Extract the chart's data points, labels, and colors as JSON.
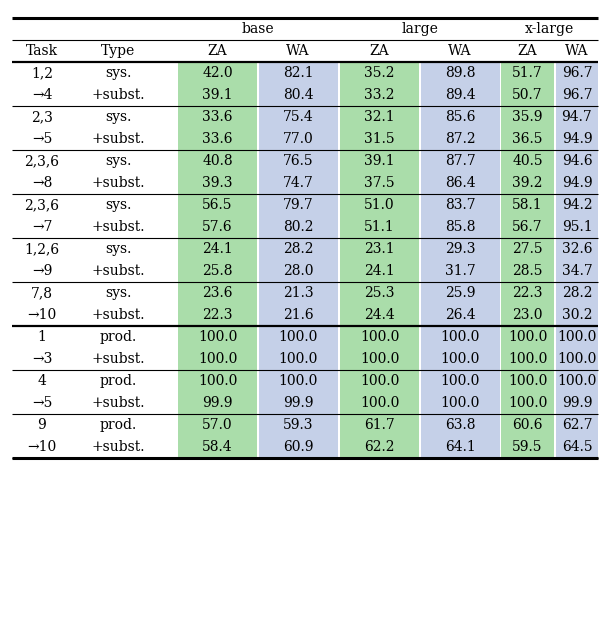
{
  "rows": [
    {
      "task": [
        "1,2",
        "→4"
      ],
      "type": [
        "sys.",
        "+subst."
      ],
      "vals": [
        [
          "42.0",
          "82.1",
          "35.2",
          "89.8",
          "51.7",
          "96.7"
        ],
        [
          "39.1",
          "80.4",
          "33.2",
          "89.4",
          "50.7",
          "96.7"
        ]
      ]
    },
    {
      "task": [
        "2,3",
        "→5"
      ],
      "type": [
        "sys.",
        "+subst."
      ],
      "vals": [
        [
          "33.6",
          "75.4",
          "32.1",
          "85.6",
          "35.9",
          "94.7"
        ],
        [
          "33.6",
          "77.0",
          "31.5",
          "87.2",
          "36.5",
          "94.9"
        ]
      ]
    },
    {
      "task": [
        "2,3,6",
        "→8"
      ],
      "type": [
        "sys.",
        "+subst."
      ],
      "vals": [
        [
          "40.8",
          "76.5",
          "39.1",
          "87.7",
          "40.5",
          "94.6"
        ],
        [
          "39.3",
          "74.7",
          "37.5",
          "86.4",
          "39.2",
          "94.9"
        ]
      ]
    },
    {
      "task": [
        "2,3,6",
        "→7"
      ],
      "type": [
        "sys.",
        "+subst."
      ],
      "vals": [
        [
          "56.5",
          "79.7",
          "51.0",
          "83.7",
          "58.1",
          "94.2"
        ],
        [
          "57.6",
          "80.2",
          "51.1",
          "85.8",
          "56.7",
          "95.1"
        ]
      ]
    },
    {
      "task": [
        "1,2,6",
        "→9"
      ],
      "type": [
        "sys.",
        "+subst."
      ],
      "vals": [
        [
          "24.1",
          "28.2",
          "23.1",
          "29.3",
          "27.5",
          "32.6"
        ],
        [
          "25.8",
          "28.0",
          "24.1",
          "31.7",
          "28.5",
          "34.7"
        ]
      ]
    },
    {
      "task": [
        "7,8",
        "→10"
      ],
      "type": [
        "sys.",
        "+subst."
      ],
      "vals": [
        [
          "23.6",
          "21.3",
          "25.3",
          "25.9",
          "22.3",
          "28.2"
        ],
        [
          "22.3",
          "21.6",
          "24.4",
          "26.4",
          "23.0",
          "30.2"
        ]
      ]
    },
    {
      "task": [
        "1",
        "→3"
      ],
      "type": [
        "prod.",
        "+subst."
      ],
      "vals": [
        [
          "100.0",
          "100.0",
          "100.0",
          "100.0",
          "100.0",
          "100.0"
        ],
        [
          "100.0",
          "100.0",
          "100.0",
          "100.0",
          "100.0",
          "100.0"
        ]
      ]
    },
    {
      "task": [
        "4",
        "→5"
      ],
      "type": [
        "prod.",
        "+subst."
      ],
      "vals": [
        [
          "100.0",
          "100.0",
          "100.0",
          "100.0",
          "100.0",
          "100.0"
        ],
        [
          "99.9",
          "99.9",
          "100.0",
          "100.0",
          "100.0",
          "99.9"
        ]
      ]
    },
    {
      "task": [
        "9",
        "→10"
      ],
      "type": [
        "prod.",
        "+subst."
      ],
      "vals": [
        [
          "57.0",
          "59.3",
          "61.7",
          "63.8",
          "60.6",
          "62.7"
        ],
        [
          "58.4",
          "60.9",
          "62.2",
          "64.1",
          "59.5",
          "64.5"
        ]
      ]
    }
  ],
  "color_green": "#aaddaa",
  "color_blue": "#c5d0e8",
  "fig_width": 6.0,
  "fig_height": 6.28,
  "dpi": 100
}
